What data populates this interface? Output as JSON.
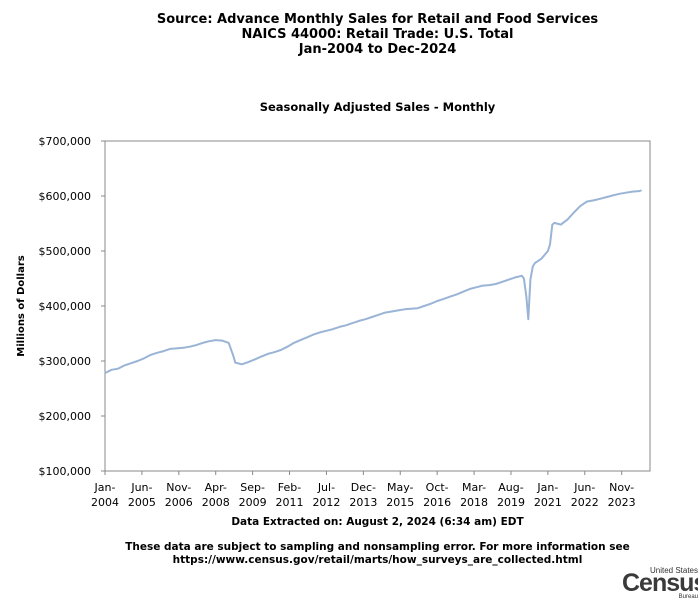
{
  "header": {
    "line1": "Source: Advance Monthly Sales for Retail and Food Services",
    "line2": "NAICS 44000: Retail Trade: U.S. Total",
    "line3": "Jan-2004 to Dec-2024"
  },
  "chart_data": {
    "type": "line",
    "title": "Seasonally Adjusted Sales - Monthly",
    "ylabel": "Millions of Dollars",
    "xlabel": "",
    "ylim": [
      100000,
      700000
    ],
    "xlim": [
      2004.0,
      2024.92
    ],
    "yticks": [
      {
        "value": 100000,
        "label": "$100,000"
      },
      {
        "value": 200000,
        "label": "$200,000"
      },
      {
        "value": 300000,
        "label": "$300,000"
      },
      {
        "value": 400000,
        "label": "$400,000"
      },
      {
        "value": 500000,
        "label": "$500,000"
      },
      {
        "value": 600000,
        "label": "$600,000"
      },
      {
        "value": 700000,
        "label": "$700,000"
      }
    ],
    "xticks": [
      {
        "value": 2004.0,
        "month": "Jan-",
        "year": "2004"
      },
      {
        "value": 2005.417,
        "month": "Jun-",
        "year": "2005"
      },
      {
        "value": 2006.833,
        "month": "Nov-",
        "year": "2006"
      },
      {
        "value": 2008.25,
        "month": "Apr-",
        "year": "2008"
      },
      {
        "value": 2009.667,
        "month": "Sep-",
        "year": "2009"
      },
      {
        "value": 2011.083,
        "month": "Feb-",
        "year": "2011"
      },
      {
        "value": 2012.5,
        "month": "Jul-",
        "year": "2012"
      },
      {
        "value": 2013.917,
        "month": "Dec-",
        "year": "2013"
      },
      {
        "value": 2015.333,
        "month": "May-",
        "year": "2015"
      },
      {
        "value": 2016.75,
        "month": "Oct-",
        "year": "2016"
      },
      {
        "value": 2018.167,
        "month": "Mar-",
        "year": "2018"
      },
      {
        "value": 2019.583,
        "month": "Aug-",
        "year": "2019"
      },
      {
        "value": 2021.0,
        "month": "Jan-",
        "year": "2021"
      },
      {
        "value": 2022.417,
        "month": "Jun-",
        "year": "2022"
      },
      {
        "value": 2023.833,
        "month": "Nov-",
        "year": "2023"
      }
    ],
    "series": [
      {
        "name": "Retail Trade: U.S. Total",
        "color": "#9ab4d6",
        "points": [
          [
            2004.0,
            278000
          ],
          [
            2004.25,
            284000
          ],
          [
            2004.5,
            286000
          ],
          [
            2004.75,
            292000
          ],
          [
            2005.0,
            296000
          ],
          [
            2005.25,
            300000
          ],
          [
            2005.5,
            305000
          ],
          [
            2005.75,
            311000
          ],
          [
            2006.0,
            315000
          ],
          [
            2006.25,
            318000
          ],
          [
            2006.5,
            322000
          ],
          [
            2006.75,
            323000
          ],
          [
            2007.0,
            324000
          ],
          [
            2007.25,
            326000
          ],
          [
            2007.5,
            329000
          ],
          [
            2007.75,
            333000
          ],
          [
            2008.0,
            336000
          ],
          [
            2008.25,
            338000
          ],
          [
            2008.5,
            337000
          ],
          [
            2008.75,
            333000
          ],
          [
            2008.92,
            310000
          ],
          [
            2009.0,
            297000
          ],
          [
            2009.25,
            294000
          ],
          [
            2009.5,
            298000
          ],
          [
            2009.75,
            303000
          ],
          [
            2010.0,
            308000
          ],
          [
            2010.25,
            313000
          ],
          [
            2010.5,
            316000
          ],
          [
            2010.75,
            320000
          ],
          [
            2011.0,
            326000
          ],
          [
            2011.25,
            333000
          ],
          [
            2011.5,
            338000
          ],
          [
            2011.75,
            343000
          ],
          [
            2012.0,
            348000
          ],
          [
            2012.25,
            352000
          ],
          [
            2012.5,
            355000
          ],
          [
            2012.75,
            358000
          ],
          [
            2013.0,
            362000
          ],
          [
            2013.25,
            365000
          ],
          [
            2013.5,
            369000
          ],
          [
            2013.75,
            373000
          ],
          [
            2014.0,
            376000
          ],
          [
            2014.25,
            380000
          ],
          [
            2014.5,
            384000
          ],
          [
            2014.75,
            388000
          ],
          [
            2015.0,
            390000
          ],
          [
            2015.25,
            392000
          ],
          [
            2015.5,
            394000
          ],
          [
            2015.75,
            395000
          ],
          [
            2016.0,
            396000
          ],
          [
            2016.25,
            400000
          ],
          [
            2016.5,
            404000
          ],
          [
            2016.75,
            409000
          ],
          [
            2017.0,
            413000
          ],
          [
            2017.25,
            417000
          ],
          [
            2017.5,
            421000
          ],
          [
            2017.75,
            426000
          ],
          [
            2018.0,
            431000
          ],
          [
            2018.25,
            434000
          ],
          [
            2018.5,
            437000
          ],
          [
            2018.75,
            438000
          ],
          [
            2019.0,
            440000
          ],
          [
            2019.25,
            444000
          ],
          [
            2019.5,
            448000
          ],
          [
            2019.75,
            452000
          ],
          [
            2020.0,
            455000
          ],
          [
            2020.08,
            450000
          ],
          [
            2020.17,
            418000
          ],
          [
            2020.25,
            376000
          ],
          [
            2020.33,
            448000
          ],
          [
            2020.42,
            472000
          ],
          [
            2020.5,
            478000
          ],
          [
            2020.75,
            486000
          ],
          [
            2021.0,
            500000
          ],
          [
            2021.08,
            512000
          ],
          [
            2021.17,
            548000
          ],
          [
            2021.25,
            551000
          ],
          [
            2021.5,
            548000
          ],
          [
            2021.75,
            557000
          ],
          [
            2022.0,
            570000
          ],
          [
            2022.25,
            582000
          ],
          [
            2022.5,
            590000
          ],
          [
            2022.75,
            592000
          ],
          [
            2023.0,
            595000
          ],
          [
            2023.25,
            598000
          ],
          [
            2023.5,
            601000
          ],
          [
            2023.75,
            604000
          ],
          [
            2024.0,
            606000
          ],
          [
            2024.25,
            608000
          ],
          [
            2024.5,
            609000
          ],
          [
            2024.58,
            610000
          ]
        ]
      }
    ]
  },
  "extracted": "Data Extracted on: August 2, 2024 (6:34 am) EDT",
  "footnote": {
    "line1": "These data are subject to sampling and nonsampling error. For more information see",
    "line2": "https://www.census.gov/retail/marts/how_surveys_are_collected.html"
  },
  "logo": {
    "top": "United States",
    "main": "Census",
    "bottom": "Bureau"
  }
}
